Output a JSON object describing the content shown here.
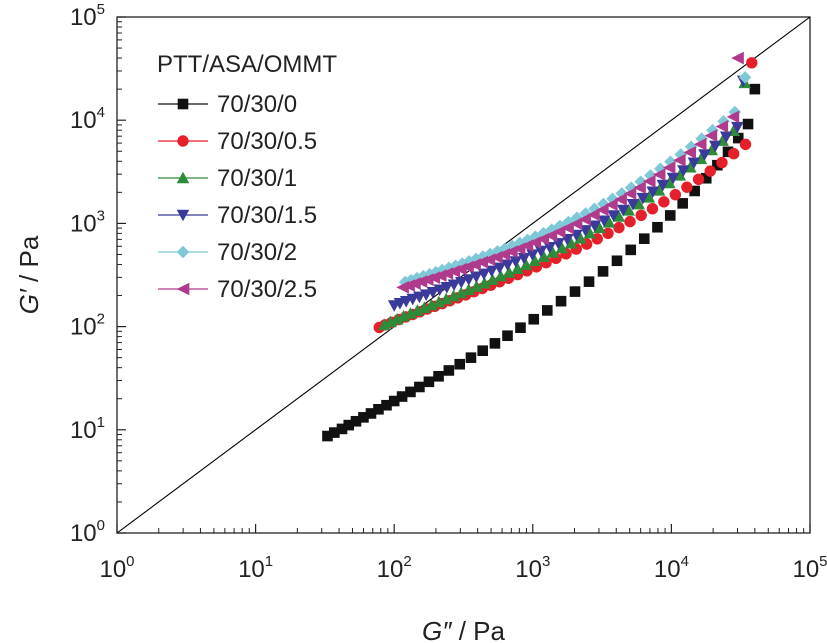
{
  "chart_data": {
    "type": "scatter",
    "x_scale": "log",
    "y_scale": "log",
    "xlim": [
      1,
      100000
    ],
    "ylim": [
      1,
      100000
    ],
    "xlabel_main": "G″",
    "xlabel_unit": " / Pa",
    "ylabel_main": "G′",
    "ylabel_unit": " / Pa",
    "x_ticks": [
      {
        "base": "10",
        "exp": "0",
        "value": 1
      },
      {
        "base": "10",
        "exp": "1",
        "value": 10
      },
      {
        "base": "10",
        "exp": "2",
        "value": 100
      },
      {
        "base": "10",
        "exp": "3",
        "value": 1000
      },
      {
        "base": "10",
        "exp": "4",
        "value": 10000
      },
      {
        "base": "10",
        "exp": "5",
        "value": 100000
      }
    ],
    "y_ticks": [
      {
        "base": "10",
        "exp": "0",
        "value": 1
      },
      {
        "base": "10",
        "exp": "1",
        "value": 10
      },
      {
        "base": "10",
        "exp": "2",
        "value": 100
      },
      {
        "base": "10",
        "exp": "3",
        "value": 1000
      },
      {
        "base": "10",
        "exp": "4",
        "value": 10000
      },
      {
        "base": "10",
        "exp": "5",
        "value": 100000
      }
    ],
    "grid": false,
    "legend_title": "PTT/ASA/OMMT",
    "legend_position": "top-left",
    "reference_line": {
      "x": [
        1,
        100000
      ],
      "y": [
        1,
        100000
      ],
      "color": "#000000"
    },
    "series": [
      {
        "name": "70/30/0",
        "marker": "square",
        "color": "#111111",
        "x": [
          33,
          37,
          42,
          47,
          53,
          60,
          68,
          77,
          88,
          100,
          114,
          131,
          152,
          178,
          209,
          248,
          297,
          358,
          435,
          533,
          657,
          815,
          1016,
          1272,
          1599,
          2016,
          2545,
          3213,
          4050,
          5090,
          6370,
          7930,
          9810,
          12060,
          14720,
          17840,
          21460,
          25620,
          30360,
          35720,
          40000
        ],
        "y": [
          8.7,
          9.4,
          10.2,
          11.1,
          12.1,
          13.2,
          14.4,
          15.8,
          17.3,
          19,
          21,
          23.3,
          26,
          29.2,
          33,
          37.6,
          43.2,
          50,
          58.4,
          68.8,
          81.6,
          97.6,
          117.8,
          143.5,
          176.3,
          218.4,
          272.6,
          342.9,
          434.4,
          554,
          711,
          918,
          1194,
          1564,
          2062,
          2739,
          3665,
          4940,
          6710,
          9180,
          20000
        ]
      },
      {
        "name": "70/30/0.5",
        "marker": "circle",
        "color": "#e5202a",
        "x": [
          78,
          86,
          96,
          108,
          121,
          136,
          153,
          173,
          196,
          222,
          252,
          287,
          328,
          376,
          432,
          498,
          576,
          668,
          777,
          907,
          1062,
          1247,
          1469,
          1736,
          2058,
          2447,
          2918,
          3489,
          4183,
          5027,
          6054,
          7304,
          8826,
          10680,
          12940,
          15700,
          19060,
          23160,
          28160,
          34260,
          38000
        ],
        "y": [
          98,
          104,
          110,
          117,
          124,
          131,
          139,
          148,
          157,
          167,
          178,
          190,
          203,
          218,
          234,
          252,
          272,
          294,
          319,
          347,
          379,
          416,
          458,
          507,
          564,
          630,
          708,
          800,
          910,
          1041,
          1198,
          1387,
          1617,
          1898,
          2244,
          2673,
          3210,
          3885,
          4740,
          5830,
          36000
        ]
      },
      {
        "name": "70/30/1",
        "marker": "triangle",
        "color": "#2e8b3a",
        "x": [
          85,
          94,
          105,
          117,
          131,
          147,
          165,
          186,
          210,
          237,
          268,
          304,
          345,
          393,
          448,
          512,
          587,
          674,
          776,
          895,
          1035,
          1199,
          1392,
          1620,
          1888,
          2205,
          2580,
          3024,
          3551,
          4177,
          4922,
          5810,
          6871,
          8140,
          9660,
          11490,
          13690,
          16340,
          19540,
          23410,
          28110,
          33800
        ],
        "y": [
          104,
          111,
          118,
          126,
          134,
          143,
          152,
          162,
          173,
          185,
          198,
          212,
          228,
          245,
          264,
          285,
          309,
          335,
          364,
          397,
          434,
          476,
          524,
          579,
          643,
          717,
          804,
          905,
          1025,
          1167,
          1337,
          1541,
          1789,
          2092,
          2464,
          2925,
          3502,
          4229,
          5155,
          6350,
          7910,
          23000
        ]
      },
      {
        "name": "70/30/1.5",
        "marker": "triangle-down",
        "color": "#3a3a9a",
        "x": [
          100,
          110,
          122,
          136,
          152,
          170,
          190,
          213,
          240,
          270,
          305,
          345,
          391,
          444,
          505,
          576,
          658,
          754,
          865,
          995,
          1147,
          1324,
          1532,
          1776,
          2063,
          2401,
          2800,
          3271,
          3829,
          4491,
          5278,
          6216,
          7336,
          8676,
          10280,
          12210,
          14540,
          17350,
          20750,
          24880,
          29910,
          33000
        ],
        "y": [
          160,
          168,
          176,
          185,
          194,
          204,
          215,
          227,
          240,
          254,
          269,
          286,
          304,
          324,
          346,
          370,
          397,
          427,
          460,
          497,
          539,
          586,
          640,
          701,
          772,
          854,
          949,
          1061,
          1192,
          1348,
          1533,
          1755,
          2024,
          2351,
          2752,
          3248,
          3866,
          4644,
          5633,
          6902,
          8548,
          24000
        ]
      },
      {
        "name": "70/30/2",
        "marker": "diamond",
        "color": "#7ec8d8",
        "x": [
          120,
          132,
          146,
          162,
          180,
          200,
          222,
          248,
          277,
          310,
          347,
          389,
          437,
          492,
          555,
          627,
          710,
          806,
          917,
          1045,
          1194,
          1367,
          1569,
          1805,
          2081,
          2404,
          2784,
          3231,
          3759,
          4384,
          5126,
          6009,
          7064,
          8327,
          9844,
          11670,
          13870,
          16550,
          19800,
          23780,
          28670,
          34000
        ],
        "y": [
          270,
          282,
          295,
          308,
          322,
          337,
          353,
          370,
          388,
          408,
          429,
          452,
          477,
          505,
          535,
          568,
          605,
          646,
          692,
          744,
          802,
          869,
          945,
          1032,
          1132,
          1248,
          1384,
          1543,
          1730,
          1952,
          2216,
          2533,
          2916,
          3382,
          3952,
          4654,
          5527,
          6618,
          7995,
          9750,
          12000,
          26000
        ]
      },
      {
        "name": "70/30/2.5",
        "marker": "triangle-left",
        "color": "#b03a8c",
        "x": [
          115,
          127,
          140,
          156,
          173,
          193,
          215,
          240,
          269,
          301,
          338,
          380,
          428,
          483,
          546,
          618,
          701,
          797,
          907,
          1034,
          1181,
          1352,
          1550,
          1781,
          2051,
          2366,
          2737,
          3174,
          3690,
          4301,
          5028,
          5892,
          6923,
          8156,
          9632,
          11410,
          13550,
          16140,
          19280,
          23110,
          27780,
          30000
        ],
        "y": [
          240,
          250,
          261,
          273,
          285,
          298,
          312,
          327,
          343,
          360,
          379,
          399,
          421,
          445,
          471,
          500,
          532,
          568,
          608,
          653,
          704,
          762,
          828,
          904,
          992,
          1094,
          1213,
          1352,
          1516,
          1711,
          1943,
          2222,
          2559,
          2970,
          3474,
          4097,
          4874,
          5852,
          7096,
          8694,
          10770,
          40000
        ]
      }
    ]
  }
}
